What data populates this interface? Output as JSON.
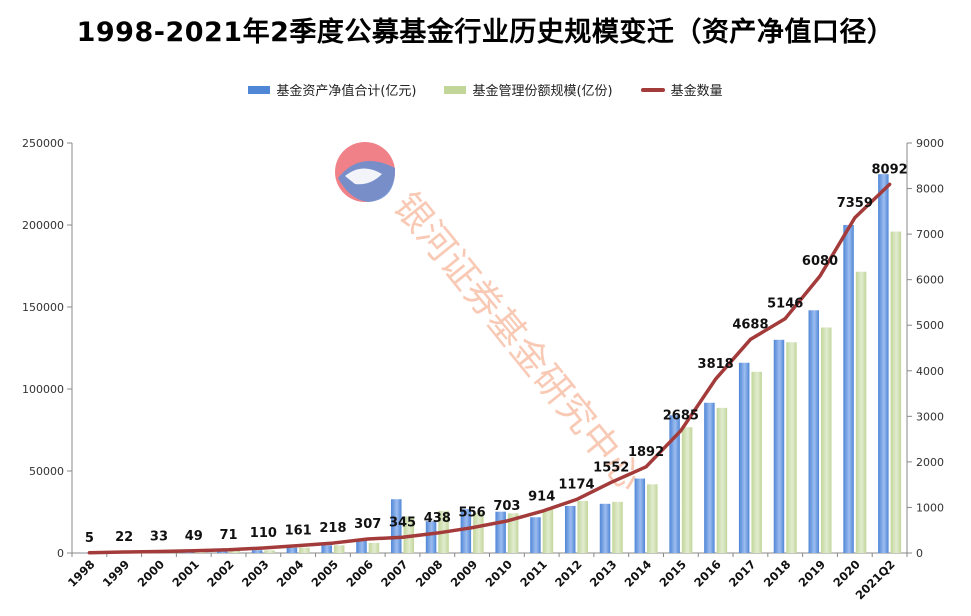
{
  "colors": {
    "bar_nav": "#4f86d6",
    "bar_nav_light": "#9dbdf0",
    "bar_shares": "#c2d69a",
    "bar_shares_light": "#e2ecd0",
    "line": "#a33b3b",
    "axis": "#888888",
    "grid": "#e6e6e6",
    "watermark_text": "#f4a07a",
    "logo_red": "#ef6b73",
    "logo_blue": "#6a8fd0"
  },
  "watermark": {
    "text": "银河证券基金研究中心"
  },
  "chart_data": {
    "type": "bar",
    "title": "1998-2021年2季度公募基金行业历史规模变迁（资产净值口径）",
    "categories": [
      "1998",
      "1999",
      "2000",
      "2001",
      "2002",
      "2003",
      "2004",
      "2005",
      "2006",
      "2007",
      "2008",
      "2009",
      "2010",
      "2011",
      "2012",
      "2013",
      "2014",
      "2015",
      "2016",
      "2017",
      "2018",
      "2019",
      "2020",
      "2021Q2"
    ],
    "y_left": {
      "ylim": [
        0,
        250000
      ],
      "ticks": [
        "0",
        "50000",
        "100000",
        "150000",
        "200000",
        "250000"
      ]
    },
    "y_right": {
      "ylim": [
        0,
        9000
      ],
      "ticks": [
        "0",
        "1000",
        "2000",
        "3000",
        "4000",
        "5000",
        "6000",
        "7000",
        "8000",
        "9000"
      ]
    },
    "series": [
      {
        "name": "基金资产净值合计(亿元)",
        "kind": "bar",
        "axis": "left",
        "values": [
          100,
          250,
          850,
          800,
          1300,
          1700,
          3200,
          4700,
          8600,
          32800,
          19400,
          26800,
          25200,
          21800,
          28700,
          30000,
          45400,
          84000,
          91600,
          116000,
          130000,
          148000,
          200000,
          231000
        ]
      },
      {
        "name": "基金管理份额规模(亿份)",
        "kind": "bar",
        "axis": "left",
        "values": [
          100,
          250,
          850,
          800,
          1300,
          1600,
          3300,
          4700,
          6200,
          22300,
          25700,
          24500,
          24200,
          26500,
          31700,
          31200,
          41900,
          76700,
          88500,
          110500,
          128500,
          137500,
          171500,
          196000
        ]
      },
      {
        "name": "基金数量",
        "kind": "line",
        "axis": "right",
        "values": [
          5,
          22,
          33,
          49,
          71,
          110,
          161,
          218,
          307,
          345,
          438,
          556,
          703,
          914,
          1174,
          1552,
          1892,
          2685,
          3818,
          4688,
          5146,
          6080,
          7359,
          8092
        ],
        "labels": [
          "5",
          "22",
          "33",
          "49",
          "71",
          "110",
          "161",
          "218",
          "307",
          "345",
          "438",
          "556",
          "703",
          "914",
          "1174",
          "1552",
          "1892",
          "2685",
          "3818",
          "4688",
          "5146",
          "6080",
          "7359",
          "8092"
        ]
      }
    ],
    "legend_position": "top",
    "grid": false
  }
}
